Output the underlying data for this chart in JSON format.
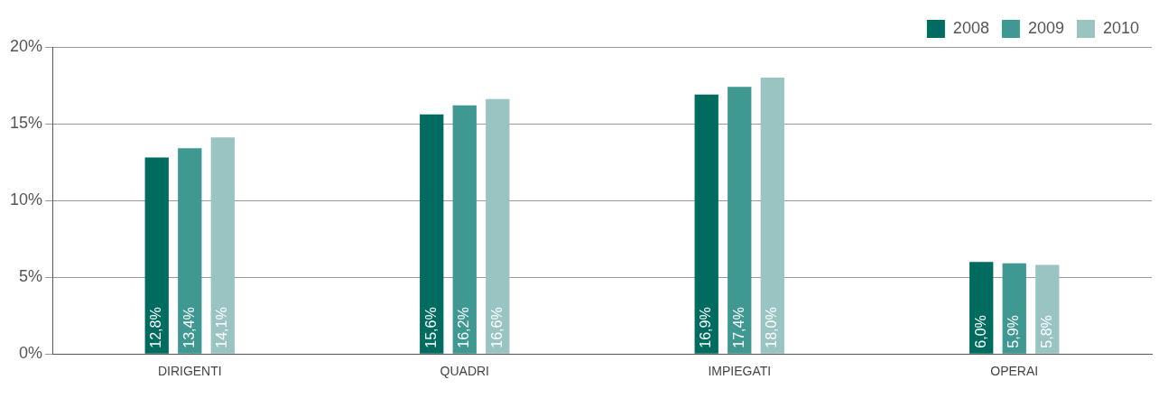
{
  "chart_data": {
    "type": "bar",
    "categories": [
      "DIRIGENTI",
      "QUADRI",
      "IMPIEGATI",
      "OPERAI"
    ],
    "series": [
      {
        "name": "2008",
        "color": "#006b5f",
        "values": [
          12.8,
          15.6,
          16.9,
          6.0
        ],
        "value_labels": [
          "12,8%",
          "15,6%",
          "16,9%",
          "6,0%"
        ]
      },
      {
        "name": "2009",
        "color": "#3f9892",
        "values": [
          13.4,
          16.2,
          17.4,
          5.9
        ],
        "value_labels": [
          "13,4%",
          "16,2%",
          "17,4%",
          "5,9%"
        ]
      },
      {
        "name": "2010",
        "color": "#99c4c2",
        "values": [
          14.1,
          16.6,
          18.0,
          5.8
        ],
        "value_labels": [
          "14,1%",
          "16,6%",
          "18,0%",
          "5,8%"
        ]
      }
    ],
    "ylim": [
      0,
      20
    ],
    "yticks": [
      {
        "value": 0,
        "label": "0%"
      },
      {
        "value": 5,
        "label": "5%"
      },
      {
        "value": 10,
        "label": "10%"
      },
      {
        "value": 15,
        "label": "15%"
      },
      {
        "value": 20,
        "label": "20%"
      }
    ],
    "grid": "y",
    "legend": "top right"
  }
}
